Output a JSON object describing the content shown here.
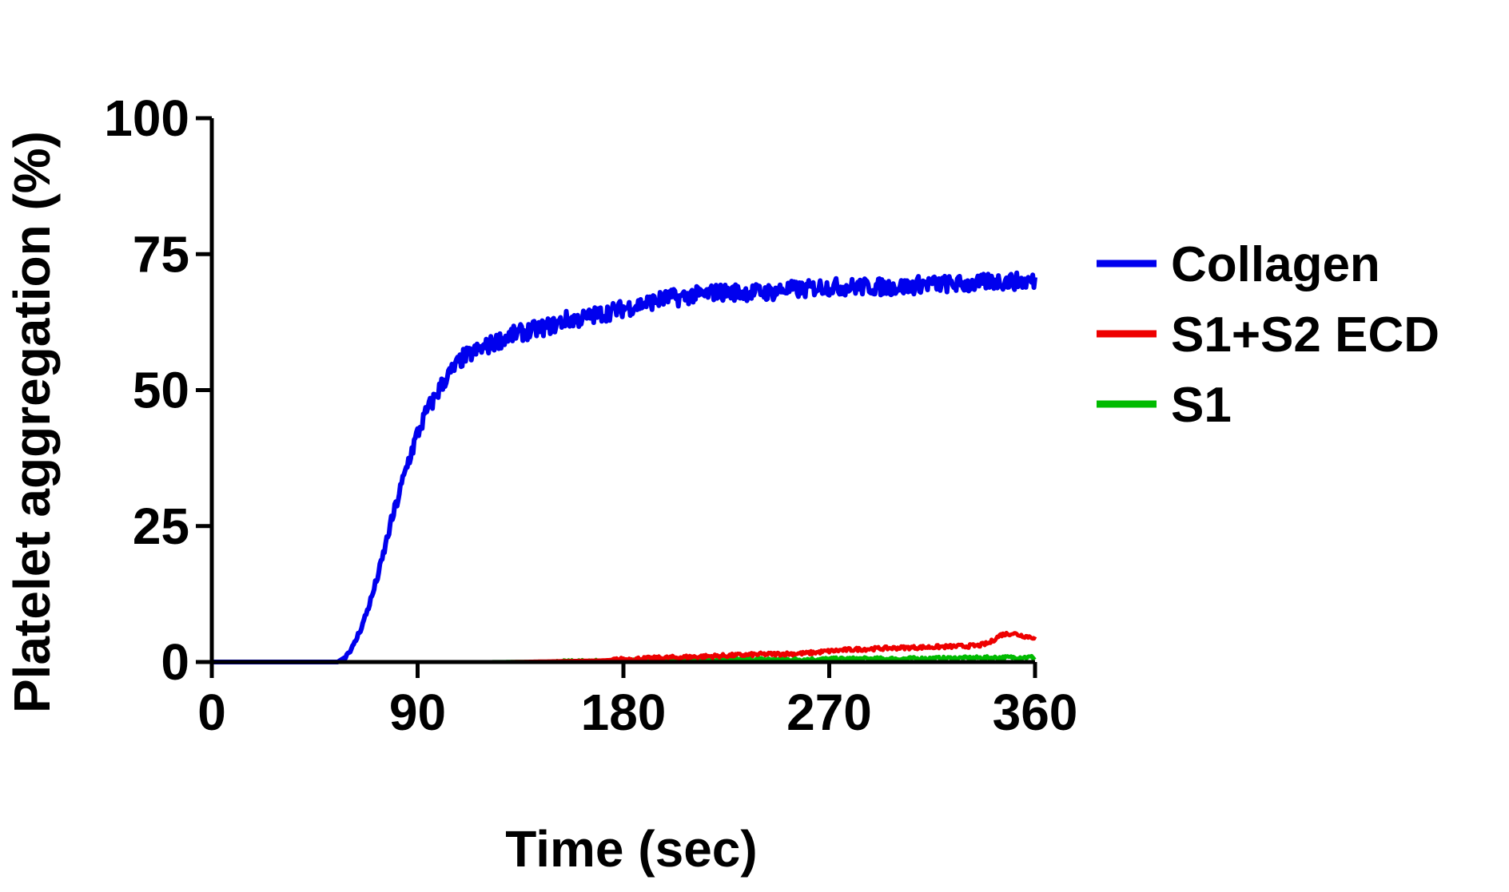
{
  "chart_data": {
    "type": "line",
    "xlabel": "Time (sec)",
    "ylabel": "Platelet aggregation (%)",
    "xlim": [
      0,
      360
    ],
    "ylim": [
      0,
      100
    ],
    "x_ticks": [
      0,
      90,
      180,
      270,
      360
    ],
    "x_tick_labels": [
      "0",
      "90",
      "180",
      "270",
      "360"
    ],
    "y_ticks": [
      0,
      25,
      50,
      75,
      100
    ],
    "y_tick_labels": [
      "0",
      "25",
      "50",
      "75",
      "100"
    ],
    "grid": false,
    "legend_position": "right",
    "series": [
      {
        "name": "Collagen",
        "color": "#0000ee",
        "x": [
          0,
          20,
          40,
          55,
          58,
          62,
          66,
          70,
          74,
          78,
          82,
          86,
          90,
          94,
          98,
          102,
          106,
          110,
          115,
          120,
          125,
          130,
          135,
          140,
          145,
          150,
          155,
          160,
          165,
          170,
          175,
          180,
          185,
          190,
          195,
          200,
          205,
          210,
          215,
          220,
          225,
          230,
          235,
          240,
          245,
          250,
          255,
          260,
          265,
          270,
          275,
          280,
          285,
          290,
          295,
          300,
          305,
          310,
          315,
          320,
          325,
          330,
          335,
          340,
          345,
          350,
          355,
          360
        ],
        "y": [
          0,
          0,
          0,
          0,
          0.8,
          3,
          7,
          12,
          18,
          25,
          31,
          37,
          42,
          46,
          49,
          52,
          54,
          56,
          57,
          58,
          59,
          60,
          60.5,
          61,
          61.5,
          62,
          63,
          63,
          63.5,
          64,
          64.5,
          65,
          65.5,
          66,
          66.5,
          67,
          67,
          67.5,
          67.5,
          68,
          68,
          68,
          68,
          68,
          68,
          68.5,
          68.5,
          68.5,
          69,
          69,
          69,
          69,
          69,
          69,
          69,
          69,
          69,
          69.5,
          69.5,
          69.5,
          69.5,
          69.5,
          69.5,
          70,
          70,
          70,
          70,
          70
        ]
      },
      {
        "name": "S1+S2 ECD",
        "color": "#ee0000",
        "x": [
          0,
          50,
          90,
          130,
          170,
          180,
          200,
          220,
          240,
          260,
          270,
          280,
          300,
          320,
          335,
          340,
          345,
          350,
          355,
          360
        ],
        "y": [
          0,
          0,
          0,
          0,
          0.3,
          0.5,
          0.8,
          1.1,
          1.4,
          1.6,
          2.0,
          2.3,
          2.6,
          2.8,
          3.0,
          3.5,
          5.0,
          5.3,
          4.8,
          4.5
        ]
      },
      {
        "name": "S1",
        "color": "#00bb00",
        "x": [
          0,
          40,
          80,
          120,
          160,
          180,
          200,
          220,
          240,
          260,
          280,
          300,
          320,
          340,
          360
        ],
        "y": [
          0,
          0,
          0,
          0,
          0.1,
          0.2,
          0.3,
          0.4,
          0.5,
          0.5,
          0.6,
          0.6,
          0.7,
          0.8,
          0.9
        ]
      }
    ]
  }
}
